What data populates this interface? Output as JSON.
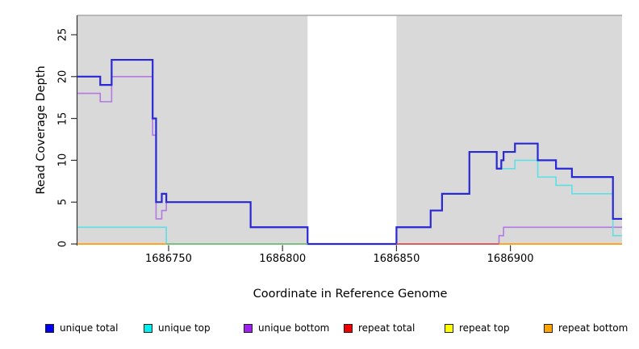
{
  "chart_data": {
    "type": "line",
    "subtype": "step-after",
    "title": "",
    "xlabel": "Coordinate in Reference Genome",
    "ylabel": "Read Coverage Depth",
    "xlim": [
      1686710,
      1686949
    ],
    "ylim": [
      0,
      27.3
    ],
    "x_ticks": [
      "1686750",
      "1686800",
      "1686850",
      "1686900"
    ],
    "x_tick_values": [
      1686750,
      1686800,
      1686850,
      1686900
    ],
    "y_ticks": [
      "0",
      "5",
      "10",
      "15",
      "20",
      "25"
    ],
    "y_tick_values": [
      0,
      5,
      10,
      15,
      20,
      25
    ],
    "grid": false,
    "legend_position": "bottom",
    "panel_color": "#d9d9d9",
    "panel_top_border_color": "#a8a8a8",
    "axis_color": "#333333",
    "masked_gap_x": [
      1686811,
      1686850
    ],
    "series": [
      {
        "name": "repeat total",
        "color": "#e05555",
        "legend_color": "#ee0000",
        "width": 1.6,
        "steps": [
          [
            1686710,
            0
          ],
          [
            1686949,
            0
          ]
        ]
      },
      {
        "name": "repeat top",
        "color": "#ffff00",
        "legend_color": "#ffff00",
        "width": 1.6,
        "steps": [
          [
            1686710,
            0
          ],
          [
            1686949,
            0
          ]
        ]
      },
      {
        "name": "repeat bottom",
        "color": "#ffa51e",
        "legend_color": "#ffa500",
        "width": 1.8,
        "steps": [
          [
            1686710,
            0
          ],
          [
            1686949,
            0
          ]
        ]
      },
      {
        "name": "unique bottom",
        "color": "#b478e2",
        "legend_color": "#a020f0",
        "width": 1.6,
        "steps": [
          [
            1686710,
            18
          ],
          [
            1686720,
            17
          ],
          [
            1686725,
            20
          ],
          [
            1686743,
            13
          ],
          [
            1686744.5,
            3
          ],
          [
            1686747,
            4
          ],
          [
            1686749,
            5
          ],
          [
            1686786,
            2
          ],
          [
            1686811,
            0
          ],
          [
            1686895,
            1
          ],
          [
            1686897,
            2
          ],
          [
            1686949,
            2
          ]
        ]
      },
      {
        "name": "unique top",
        "color": "#5ce0e6",
        "legend_color": "#00eeee",
        "width": 1.6,
        "steps": [
          [
            1686710,
            2
          ],
          [
            1686749,
            0
          ],
          [
            1686850,
            2
          ],
          [
            1686865,
            4
          ],
          [
            1686870,
            6
          ],
          [
            1686882,
            11
          ],
          [
            1686894,
            9
          ],
          [
            1686902,
            10
          ],
          [
            1686912,
            8
          ],
          [
            1686920,
            7
          ],
          [
            1686927,
            6
          ],
          [
            1686945,
            1
          ],
          [
            1686949,
            1
          ]
        ]
      },
      {
        "name": "unique total",
        "color": "#2828d6",
        "legend_color": "#0000ee",
        "width": 2.2,
        "steps": [
          [
            1686710,
            20
          ],
          [
            1686720,
            19
          ],
          [
            1686725,
            22
          ],
          [
            1686743,
            15
          ],
          [
            1686744.5,
            5
          ],
          [
            1686747,
            6
          ],
          [
            1686749,
            5
          ],
          [
            1686786,
            2
          ],
          [
            1686811,
            0
          ],
          [
            1686850,
            2
          ],
          [
            1686865,
            4
          ],
          [
            1686870,
            6
          ],
          [
            1686882,
            11
          ],
          [
            1686894,
            9
          ],
          [
            1686896,
            10
          ],
          [
            1686897,
            11
          ],
          [
            1686902,
            12
          ],
          [
            1686912,
            10
          ],
          [
            1686920,
            9
          ],
          [
            1686927,
            8
          ],
          [
            1686945,
            3
          ],
          [
            1686949,
            3
          ]
        ]
      }
    ],
    "baseline_segments": [
      {
        "x1": 1686710,
        "x2": 1686749,
        "color": "#ffa51e"
      },
      {
        "x1": 1686749,
        "x2": 1686811,
        "color": "#74c17a"
      },
      {
        "x1": 1686850,
        "x2": 1686895,
        "color": "#e05555"
      },
      {
        "x1": 1686895,
        "x2": 1686949,
        "color": "#ffa51e"
      }
    ],
    "legend": [
      {
        "label": "unique total",
        "color": "#0000ee"
      },
      {
        "label": "unique top",
        "color": "#00eeee"
      },
      {
        "label": "unique bottom",
        "color": "#a020f0"
      },
      {
        "label": "repeat total",
        "color": "#ee0000"
      },
      {
        "label": "repeat top",
        "color": "#ffff00"
      },
      {
        "label": "repeat bottom",
        "color": "#ffa500"
      }
    ]
  }
}
